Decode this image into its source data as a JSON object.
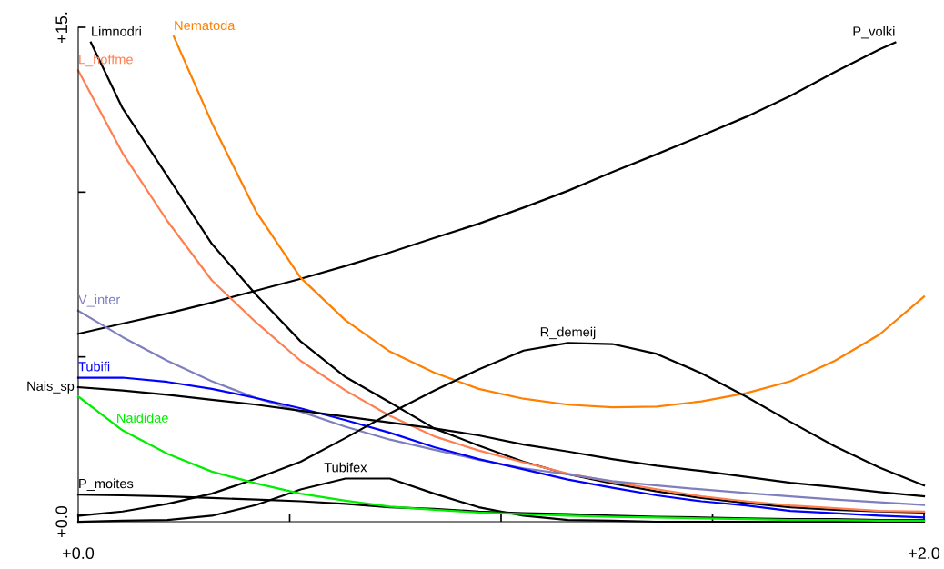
{
  "chart_data": {
    "type": "line",
    "xlim": [
      0,
      2
    ],
    "ylim": [
      0,
      15
    ],
    "xticks": [
      {
        "value": 0,
        "label": "+0.0"
      },
      {
        "value": 0.5,
        "label": null
      },
      {
        "value": 1,
        "label": null
      },
      {
        "value": 1.5,
        "label": null
      },
      {
        "value": 2,
        "label": "+2.0"
      }
    ],
    "yticks": [
      {
        "value": 0,
        "label": "+0.0"
      },
      {
        "value": 5,
        "label": null
      },
      {
        "value": 10,
        "label": null
      },
      {
        "value": 15,
        "label": "+15."
      }
    ],
    "grid": false,
    "legend": false,
    "marker": "none",
    "line_style": "solid",
    "x": [
      0,
      0.105,
      0.211,
      0.316,
      0.421,
      0.526,
      0.632,
      0.737,
      0.842,
      0.947,
      1.053,
      1.158,
      1.263,
      1.368,
      1.474,
      1.579,
      1.684,
      1.789,
      1.895,
      2.0
    ],
    "series": [
      {
        "name": "P_volki",
        "color": "#000000",
        "x": [
          0,
          0.105,
          0.211,
          0.316,
          0.421,
          0.526,
          0.632,
          0.737,
          0.842,
          0.947,
          1.053,
          1.158,
          1.263,
          1.368,
          1.474,
          1.579,
          1.684,
          1.789,
          1.895,
          1.932
        ],
        "values": [
          5.7,
          6.01,
          6.32,
          6.65,
          7.01,
          7.37,
          7.76,
          8.17,
          8.61,
          9.04,
          9.53,
          10.04,
          10.61,
          11.15,
          11.71,
          12.28,
          12.92,
          13.64,
          14.33,
          14.54
        ]
      },
      {
        "name": "Nematoda",
        "color": "#ff7f00",
        "x": [
          0.226,
          0.316,
          0.421,
          0.526,
          0.632,
          0.737,
          0.842,
          0.947,
          1.053,
          1.158,
          1.263,
          1.368,
          1.474,
          1.579,
          1.684,
          1.789,
          1.895,
          2.0
        ],
        "values": [
          14.72,
          12.1,
          9.4,
          7.4,
          6.11,
          5.16,
          4.52,
          4.03,
          3.73,
          3.55,
          3.47,
          3.49,
          3.65,
          3.9,
          4.26,
          4.88,
          5.68,
          6.83
        ]
      },
      {
        "name": "Limnodri",
        "color": "#000000",
        "x": [
          0.03,
          0.105,
          0.211,
          0.316,
          0.421,
          0.526,
          0.632,
          0.737,
          0.842,
          0.947,
          1.053,
          1.158,
          1.263,
          1.368,
          1.474,
          1.579,
          1.684,
          1.789,
          1.895,
          2.0
        ],
        "values": [
          14.54,
          12.54,
          10.48,
          8.43,
          6.88,
          5.47,
          4.39,
          3.62,
          2.83,
          2.31,
          1.82,
          1.44,
          1.16,
          0.92,
          0.72,
          0.57,
          0.44,
          0.36,
          0.31,
          0.28
        ]
      },
      {
        "name": "L_hoffme",
        "color": "#ff7f50",
        "values": [
          13.69,
          11.18,
          9.12,
          7.32,
          6.04,
          4.88,
          3.98,
          3.21,
          2.59,
          2.16,
          1.8,
          1.46,
          1.21,
          0.98,
          0.77,
          0.62,
          0.49,
          0.41,
          0.33,
          0.31
        ]
      },
      {
        "name": "V_inter",
        "color": "#7f7fbf",
        "values": [
          6.4,
          5.6,
          4.88,
          4.26,
          3.75,
          3.34,
          2.88,
          2.49,
          2.18,
          1.88,
          1.62,
          1.44,
          1.23,
          1.1,
          0.98,
          0.87,
          0.77,
          0.67,
          0.59,
          0.51
        ]
      },
      {
        "name": "Tubifi",
        "color": "#0000ff",
        "values": [
          4.37,
          4.37,
          4.24,
          4.03,
          3.75,
          3.44,
          3.08,
          2.7,
          2.26,
          1.9,
          1.59,
          1.28,
          1.03,
          0.8,
          0.62,
          0.49,
          0.33,
          0.26,
          0.18,
          0.13
        ]
      },
      {
        "name": "Nais_sp",
        "color": "#000000",
        "values": [
          4.08,
          3.98,
          3.85,
          3.7,
          3.55,
          3.37,
          3.19,
          3.01,
          2.83,
          2.62,
          2.34,
          2.13,
          1.9,
          1.7,
          1.54,
          1.36,
          1.18,
          1.05,
          0.9,
          0.77
        ]
      },
      {
        "name": "Naididae",
        "color": "#00ee00",
        "values": [
          3.8,
          2.77,
          2.06,
          1.52,
          1.16,
          0.85,
          0.64,
          0.46,
          0.36,
          0.28,
          0.23,
          0.18,
          0.15,
          0.13,
          0.1,
          0.08,
          0.05,
          0.05,
          0.03,
          0.03
        ]
      },
      {
        "name": "R_demeij",
        "color": "#000000",
        "values": [
          0.18,
          0.31,
          0.54,
          0.85,
          1.31,
          1.82,
          2.54,
          3.29,
          3.98,
          4.62,
          5.19,
          5.42,
          5.39,
          5.09,
          4.5,
          3.8,
          3.03,
          2.29,
          1.64,
          1.1
        ]
      },
      {
        "name": "Tubifex",
        "color": "#000000",
        "values": [
          0,
          0.03,
          0.05,
          0.18,
          0.51,
          0.98,
          1.31,
          1.31,
          0.85,
          0.44,
          0.18,
          0.05,
          0.03,
          0,
          0,
          0,
          0,
          0,
          0,
          0
        ]
      },
      {
        "name": "P_moites",
        "color": "#000000",
        "values": [
          0.82,
          0.8,
          0.77,
          0.72,
          0.67,
          0.62,
          0.54,
          0.44,
          0.39,
          0.31,
          0.26,
          0.23,
          0.18,
          0.15,
          0.13,
          0.1,
          0.08,
          0.08,
          0.05,
          0.05
        ]
      }
    ]
  }
}
